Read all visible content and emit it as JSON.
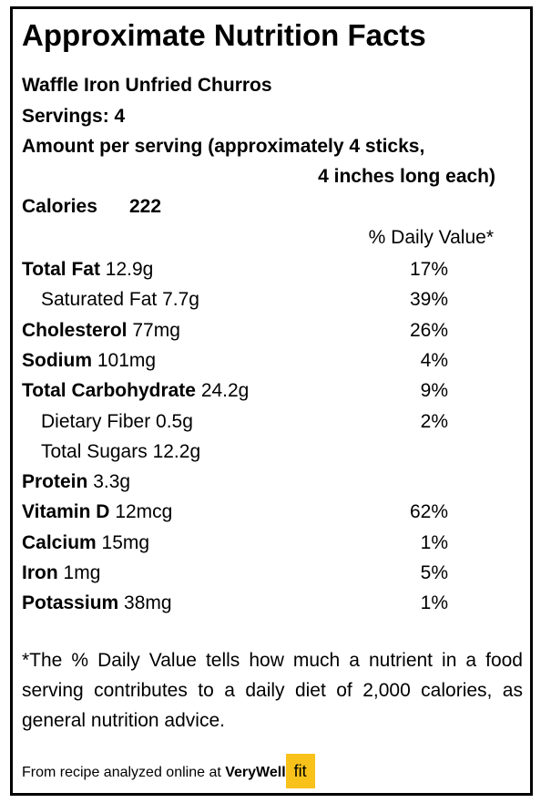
{
  "title": "Approximate Nutrition Facts",
  "recipe": "Waffle Iron Unfried Churros",
  "servings": "Servings: 4",
  "amount_per_serving": [
    "Amount per serving (approximately 4 sticks,",
    "4 inches long each)"
  ],
  "calories": {
    "label": "Calories",
    "value": "222"
  },
  "dv_header": "% Daily Value*",
  "nutrients": [
    {
      "name": "Total Fat",
      "amount": "12.9g",
      "dv": "17%",
      "sub": [
        {
          "name": "Saturated Fat",
          "amount": "7.7g",
          "dv": "39%"
        }
      ]
    },
    {
      "name": "Cholesterol",
      "amount": "77mg",
      "dv": "26%"
    },
    {
      "name": "Sodium",
      "amount": "101mg",
      "dv": "4%"
    },
    {
      "name": "Total Carbohydrate",
      "amount": "24.2g",
      "dv": "9%",
      "sub": [
        {
          "name": "Dietary Fiber",
          "amount": "0.5g",
          "dv": "2%"
        },
        {
          "name": "Total Sugars",
          "amount": "12.2g"
        }
      ]
    },
    {
      "name": "Protein",
      "amount": "3.3g"
    },
    {
      "name": "Vitamin D",
      "amount": "12mcg",
      "dv": "62%"
    },
    {
      "name": "Calcium",
      "amount": "15mg",
      "dv": "1%"
    },
    {
      "name": "Iron",
      "amount": "1mg",
      "dv": "5%"
    },
    {
      "name": "Potassium",
      "amount": "38mg",
      "dv": "1%"
    }
  ],
  "footnote": "*The % Daily Value tells how much a nutrient in a food serving contributes to a daily diet of 2,000 calories, as general nutrition advice.",
  "source": {
    "text": "From recipe analyzed online at",
    "brand": "VeryWell",
    "brand_badge": "fit"
  }
}
